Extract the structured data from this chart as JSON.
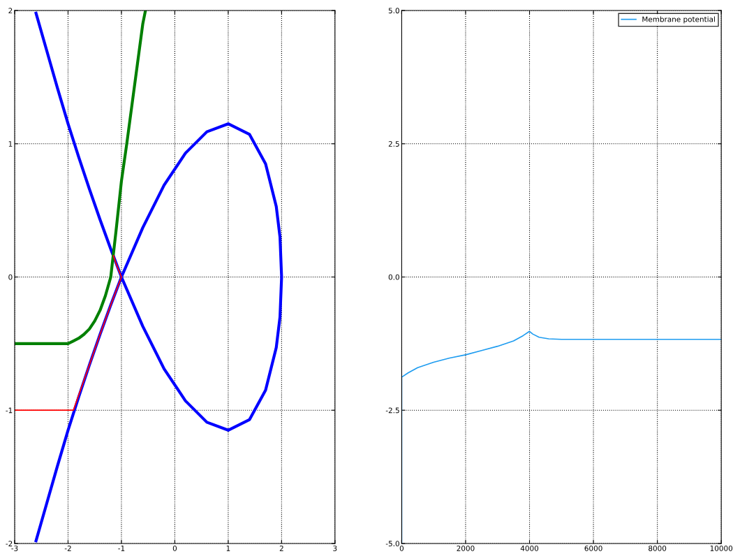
{
  "chart_data": [
    {
      "type": "line",
      "xlim": [
        -3,
        3
      ],
      "ylim": [
        -2,
        2
      ],
      "xticks": [
        -3,
        -2,
        -1,
        0,
        1,
        2,
        3
      ],
      "yticks": [
        -2,
        -1,
        0,
        1,
        2
      ],
      "grid": true,
      "legend": false,
      "line_style": "solid",
      "marker": "none",
      "series": [
        {
          "color": "#0000ff",
          "x": [
            -2.6,
            -2.4,
            -2.2,
            -2,
            -1.8,
            -1.6,
            -1.4,
            -1.2,
            -1,
            -0.6,
            -0.2,
            0.2,
            0.6,
            1,
            1.4,
            1.7,
            1.9,
            1.97,
            2,
            1.97,
            1.9,
            1.7,
            1.4,
            1,
            0.6,
            0.2,
            -0.2,
            -0.6,
            -1,
            -1.2,
            -1.4,
            -1.6,
            -1.8,
            -2,
            -2.2,
            -2.4,
            -2.6
          ],
          "values": [
            1.98,
            1.7,
            1.42,
            1.15,
            0.9,
            0.66,
            0.43,
            0.21,
            0,
            -0.37,
            -0.69,
            -0.93,
            -1.09,
            -1.15,
            -1.07,
            -0.85,
            -0.53,
            -0.3,
            0,
            0.3,
            0.53,
            0.85,
            1.07,
            1.15,
            1.09,
            0.93,
            0.69,
            0.37,
            0,
            -0.21,
            -0.43,
            -0.66,
            -0.9,
            -1.15,
            -1.42,
            -1.7,
            -1.98
          ]
        },
        {
          "color": "#008000",
          "x": [
            -3,
            -2,
            -1.9,
            -1.8,
            -1.7,
            -1.6,
            -1.5,
            -1.4,
            -1.3,
            -1.2,
            -1.1,
            -1.0,
            -0.9,
            -0.8,
            -0.7,
            -0.6,
            -0.55
          ],
          "values": [
            -0.5,
            -0.5,
            -0.48,
            -0.46,
            -0.43,
            -0.39,
            -0.33,
            -0.25,
            -0.14,
            0.0,
            0.35,
            0.72,
            1.0,
            1.3,
            1.6,
            1.9,
            2.0
          ]
        },
        {
          "color": "#ff0000",
          "x": [
            -3,
            -1.9,
            -1.6,
            -1.4,
            -1.2,
            -1.0,
            -1.1,
            -1.15
          ],
          "values": [
            -1,
            -1,
            -0.66,
            -0.43,
            -0.21,
            0,
            0.1,
            0.16
          ]
        }
      ]
    },
    {
      "type": "line",
      "xlim": [
        0,
        10000
      ],
      "ylim": [
        -5,
        5
      ],
      "xticks": [
        0,
        2000,
        4000,
        6000,
        8000,
        10000
      ],
      "yticks": [
        {
          "value": -5,
          "label": "-5.0"
        },
        {
          "value": -2.5,
          "label": "-2.5"
        },
        {
          "value": 0,
          "label": "0.0"
        },
        {
          "value": 2.5,
          "label": "2.5"
        },
        {
          "value": 5,
          "label": "5.0"
        }
      ],
      "grid": true,
      "legend": "top right",
      "line_style": "solid",
      "marker": "none",
      "series": [
        {
          "name": "Membrane potential",
          "color": "#1e9cf0",
          "x": [
            0,
            0,
            200,
            500,
            1000,
            1500,
            2000,
            2500,
            3000,
            3500,
            3800,
            4000,
            4100,
            4300,
            4600,
            5000,
            10000
          ],
          "values": [
            -5,
            -1.88,
            -1.8,
            -1.7,
            -1.6,
            -1.52,
            -1.46,
            -1.38,
            -1.3,
            -1.2,
            -1.1,
            -1.02,
            -1.07,
            -1.13,
            -1.16,
            -1.17,
            -1.17
          ]
        }
      ]
    }
  ]
}
